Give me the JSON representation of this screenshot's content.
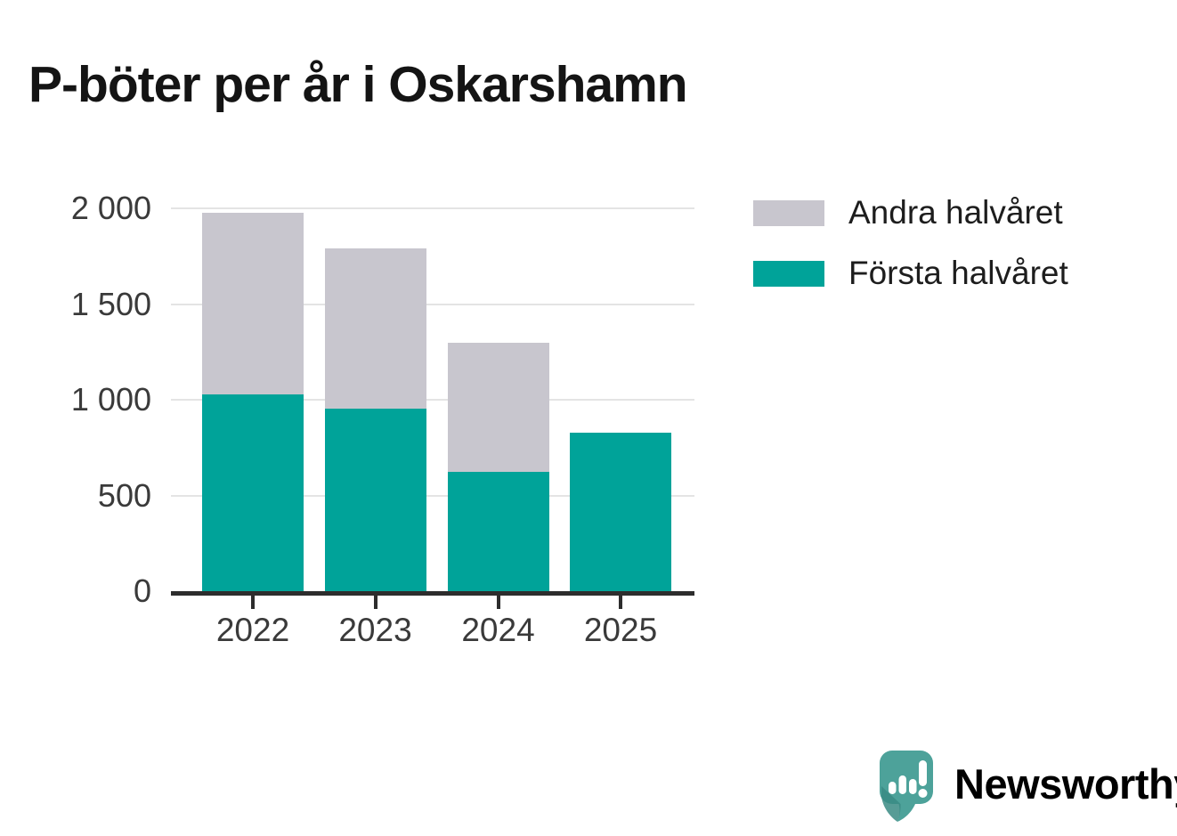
{
  "title": "P-böter per år i Oskarshamn",
  "chart_data": {
    "type": "bar",
    "stacked": true,
    "title": "P-böter per år i Oskarshamn",
    "categories": [
      "2022",
      "2023",
      "2024",
      "2025"
    ],
    "series": [
      {
        "name": "Första halvåret",
        "color": "#00a399",
        "values": [
          1030,
          955,
          625,
          830
        ]
      },
      {
        "name": "Andra halvåret",
        "color": "#c8c6ce",
        "values": [
          945,
          835,
          675,
          0
        ]
      }
    ],
    "totals": [
      1975,
      1790,
      1300,
      830
    ],
    "xlabel": "",
    "ylabel": "",
    "ylim": [
      0,
      2000
    ],
    "yticks": [
      {
        "value": 2000,
        "label": "2 000"
      },
      {
        "value": 1500,
        "label": "1 500"
      },
      {
        "value": 1000,
        "label": "1 000"
      },
      {
        "value": 500,
        "label": "500"
      },
      {
        "value": 0,
        "label": "0"
      }
    ],
    "grid": true,
    "legend_position": "right-top",
    "legend": [
      {
        "label": "Andra halvåret",
        "series_index": 1
      },
      {
        "label": "Första halvåret",
        "series_index": 0
      }
    ],
    "axis_color": "#2d2d2d",
    "gridline_color": "#e4e4e4",
    "text_color": "#3a3a3a"
  },
  "branding": {
    "logo_text": "Newsworthy",
    "logo_color": "#3e948e",
    "logo_mark": "newsworthy-speech-bubble-bar-chart-icon",
    "logo_mark_color": "#4da29a",
    "logo_mark_shade_color": "#3a8b84"
  }
}
